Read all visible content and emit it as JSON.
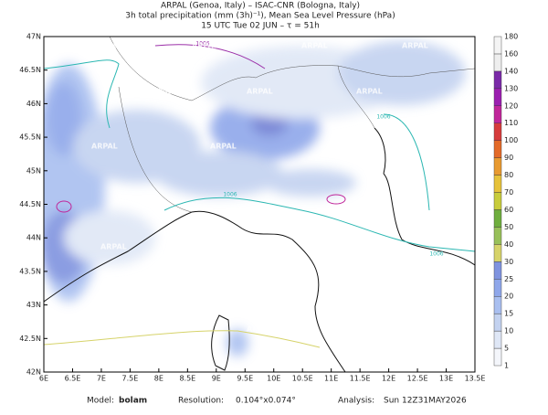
{
  "header": {
    "line1": "ARPAL (Genoa, Italy)  –  ISAC-CNR (Bologna, Italy)",
    "line2": "3h total precipitation (mm (3h)⁻¹), Mean Sea Level Pressure (hPa)",
    "line3": "15 UTC Tue 02 JUN  –  τ = 51h"
  },
  "map": {
    "lat_labels": [
      "47N",
      "46.5N",
      "46N",
      "45.5N",
      "45N",
      "44.5N",
      "44N",
      "43.5N",
      "43N",
      "42.5N",
      "42N"
    ],
    "lon_labels": [
      "6E",
      "6.5E",
      "7E",
      "7.5E",
      "8E",
      "8.5E",
      "9E",
      "9.5E",
      "10E",
      "10.5E",
      "11E",
      "11.5E",
      "12E",
      "12.5E",
      "13E",
      "13.5E"
    ],
    "contour_labels": [
      "1006",
      "1006",
      "1006",
      "1006"
    ],
    "watermarks": [
      "ARPAL",
      "ARPAL",
      "ARPAL",
      "ARPAL",
      "ARPAL",
      "ARPAL",
      "ARPAL",
      "ARPAL",
      "ARPAL",
      "ARPAL",
      "ARPAL",
      "ARPAL"
    ]
  },
  "colorbar": {
    "labels": [
      "1",
      "5",
      "10",
      "15",
      "20",
      "25",
      "30",
      "40",
      "50",
      "60",
      "70",
      "80",
      "90",
      "100",
      "110",
      "120",
      "130",
      "140",
      "160",
      "180"
    ],
    "colors": [
      "#f4f6fb",
      "#dfe7f6",
      "#c3d2f0",
      "#a9bff0",
      "#8fa7ea",
      "#7f93df",
      "#d6d36a",
      "#98c05a",
      "#6fae3e",
      "#c8cc3c",
      "#e6c23a",
      "#e89a30",
      "#e36a28",
      "#d63c3c",
      "#c0269a",
      "#9b1fb0",
      "#7a2aa8",
      "#eeeeee",
      "#f4f4f4"
    ]
  },
  "footer": {
    "model_label": "Model:",
    "model": "bolam",
    "resolution_label": "Resolution:",
    "resolution": "0.104°x0.074°",
    "analysis_label": "Analysis:",
    "analysis": "Sun 12Z31MAY2026"
  }
}
